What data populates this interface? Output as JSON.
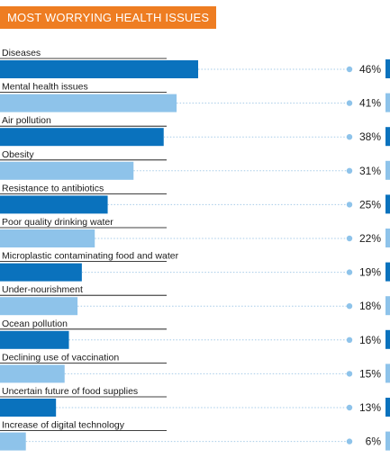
{
  "chart_data": {
    "type": "bar",
    "orientation": "horizontal",
    "title": "MOST WORRYING HEALTH ISSUES",
    "unit": "%",
    "categories": [
      "Diseases",
      "Mental health issues",
      "Air pollution",
      "Obesity",
      "Resistance to antibiotics",
      "Poor quality drinking water",
      "Microplastic contaminating food and water",
      "Under-nourishment",
      "Ocean pollution",
      "Declining use of vaccination",
      "Uncertain future of food supplies",
      "Increase of digital technology"
    ],
    "values": [
      46,
      41,
      38,
      31,
      25,
      22,
      19,
      18,
      16,
      15,
      13,
      6
    ],
    "value_labels": [
      "46%",
      "41%",
      "38%",
      "31%",
      "25%",
      "22%",
      "19%",
      "18%",
      "16%",
      "15%",
      "13%",
      "6%"
    ],
    "xlim": [
      0,
      100
    ],
    "legend": "none",
    "grid": false,
    "colors": {
      "title_bg": "#ee7d22",
      "bar_dark": "#0a72bd",
      "bar_light": "#8ec3ea",
      "dots": "#a6cbe8",
      "dot": "#8ec3ea",
      "text": "#1a1a1a"
    }
  }
}
